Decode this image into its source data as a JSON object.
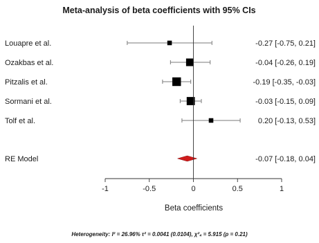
{
  "chart_data": {
    "type": "forest",
    "title": "Meta-analysis of beta coefficients with 95% CIs",
    "xlabel": "Beta coefficients",
    "xlim": [
      -1,
      1
    ],
    "xticks": [
      -1,
      -0.5,
      0,
      0.5,
      1
    ],
    "xtick_labels": [
      "-1",
      "-0.5",
      "0",
      "0.5",
      "1"
    ],
    "reference_line": 0,
    "studies": [
      {
        "name": "Louapre et al.",
        "estimate": -0.27,
        "lower": -0.75,
        "upper": 0.21,
        "ci_text": "-0.27 [-0.75,  0.21]",
        "weight": 0.05
      },
      {
        "name": "Ozakbas et al.",
        "estimate": -0.04,
        "lower": -0.26,
        "upper": 0.19,
        "ci_text": "-0.04 [-0.26,  0.19]",
        "weight": 0.25
      },
      {
        "name": "Pitzalis et al.",
        "estimate": -0.19,
        "lower": -0.35,
        "upper": -0.03,
        "ci_text": "-0.19 [-0.35, -0.03]",
        "weight": 0.35
      },
      {
        "name": "Sormani et al.",
        "estimate": -0.03,
        "lower": -0.15,
        "upper": 0.09,
        "ci_text": "-0.03 [-0.15,  0.09]",
        "weight": 0.3
      },
      {
        "name": "Tolf et al.",
        "estimate": 0.2,
        "lower": -0.13,
        "upper": 0.53,
        "ci_text": "0.20 [-0.13,  0.53]",
        "weight": 0.05
      }
    ],
    "summary": {
      "name": "RE Model",
      "estimate": -0.07,
      "lower": -0.18,
      "upper": 0.04,
      "ci_text": "-0.07 [-0.18,  0.04]"
    },
    "colors": {
      "summary": "#d01c1c",
      "points": "#000000",
      "lines": "#7a7a7a"
    }
  },
  "footer": {
    "heterogeneity": "Heterogeneity: I² = 26.96%  τ² = 0.0041 (0.0104), χ²₄ = 5.915 (p = 0.21)"
  }
}
